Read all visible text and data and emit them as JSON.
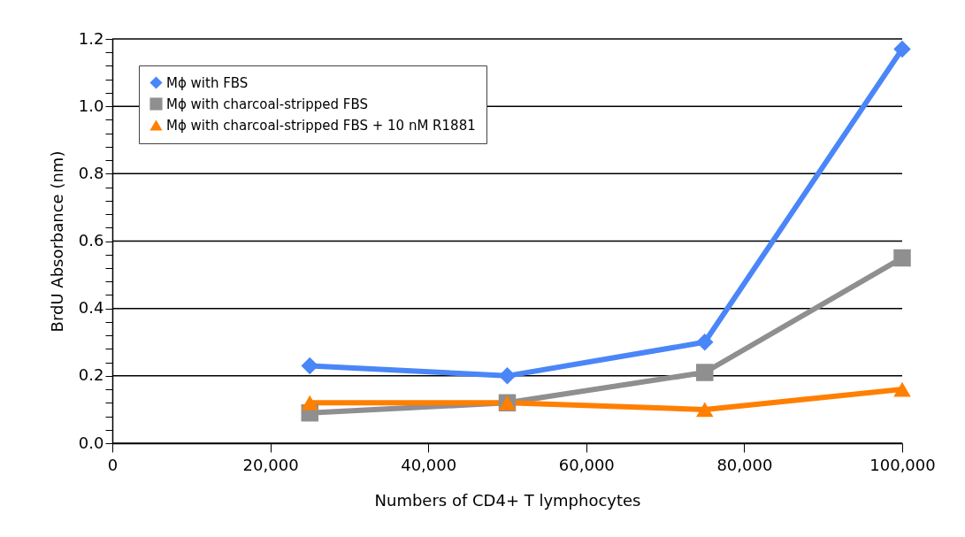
{
  "chart_data": {
    "type": "line",
    "xlabel": "Numbers of CD4+ T lymphocytes",
    "ylabel": "BrdU Absorbance (nm)",
    "xlim": [
      0,
      100000
    ],
    "xticks": [
      0,
      {
        "value": 20000,
        "label": "20,000"
      },
      {
        "value": 40000,
        "label": "40,000"
      },
      {
        "value": 60000,
        "label": "60,000"
      },
      {
        "value": 80000,
        "label": "80,000"
      },
      {
        "value": 100000,
        "label": "100,000"
      }
    ],
    "ylim": [
      0,
      1.2
    ],
    "yticks": [
      {
        "value": 0,
        "label": "0.0"
      },
      {
        "value": 0.04,
        "label": null
      },
      {
        "value": 0.08,
        "label": null
      },
      {
        "value": 0.12,
        "label": null
      },
      {
        "value": 0.16,
        "label": null
      },
      {
        "value": 0.2,
        "label": "0.2"
      },
      {
        "value": 0.24,
        "label": null
      },
      {
        "value": 0.28,
        "label": null
      },
      {
        "value": 0.32,
        "label": null
      },
      {
        "value": 0.36,
        "label": null
      },
      {
        "value": 0.4,
        "label": "0.4"
      },
      {
        "value": 0.44,
        "label": null
      },
      {
        "value": 0.48,
        "label": null
      },
      {
        "value": 0.52,
        "label": null
      },
      {
        "value": 0.56,
        "label": null
      },
      {
        "value": 0.6,
        "label": "0.6"
      },
      {
        "value": 0.64,
        "label": null
      },
      {
        "value": 0.68,
        "label": null
      },
      {
        "value": 0.72,
        "label": null
      },
      {
        "value": 0.76,
        "label": null
      },
      {
        "value": 0.8,
        "label": "0.8"
      },
      {
        "value": 0.84,
        "label": null
      },
      {
        "value": 0.88,
        "label": null
      },
      {
        "value": 0.92,
        "label": null
      },
      {
        "value": 0.96,
        "label": null
      },
      {
        "value": 1,
        "label": "1.0"
      },
      {
        "value": 1.04,
        "label": null
      },
      {
        "value": 1.08,
        "label": null
      },
      {
        "value": 1.12,
        "label": null
      },
      {
        "value": 1.16,
        "label": null
      },
      {
        "value": 1.2,
        "label": "1.2"
      }
    ],
    "x": [
      25000,
      50000,
      75000,
      100000
    ],
    "grid": "y",
    "legend": "top left",
    "line_style": "solid",
    "series": [
      {
        "name": "Mϕ with FBS",
        "color": "#4a86f7",
        "marker": "diamond",
        "values": [
          0.23,
          0.2,
          0.3,
          1.17
        ]
      },
      {
        "name": "Mϕ with charcoal-stripped FBS",
        "color": "#8f8f8f",
        "marker": "square",
        "values": [
          0.09,
          0.12,
          0.21,
          0.55
        ]
      },
      {
        "name": "Mϕ with charcoal-stripped FBS + 10 nM R1881",
        "color": "#ff7f00",
        "marker": "triangle",
        "values": [
          0.12,
          0.12,
          0.1,
          0.16
        ]
      }
    ]
  }
}
